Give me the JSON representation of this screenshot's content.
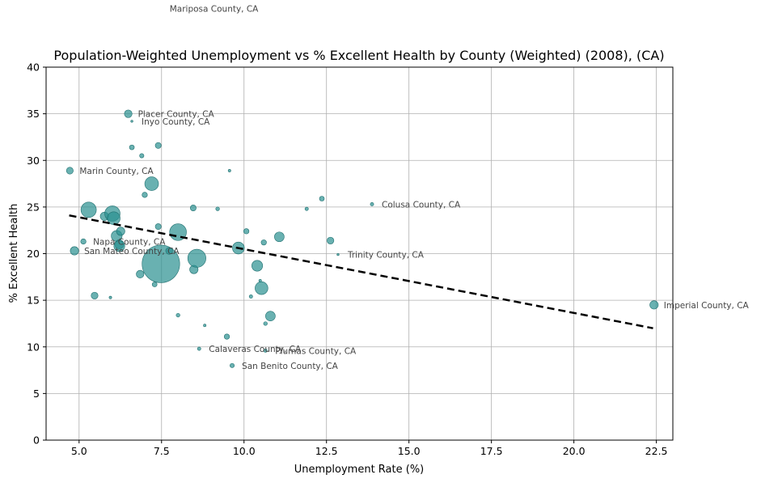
{
  "chart_data": {
    "type": "scatter",
    "title": "Population-Weighted Unemployment vs % Excellent Health by County (Weighted) (2008), (CA)",
    "xlabel": "Unemployment Rate (%)",
    "ylabel": "% Excellent Health",
    "xlim": [
      4.0,
      23.0
    ],
    "ylim": [
      0,
      40
    ],
    "xticks": [
      "5.0",
      "7.5",
      "10.0",
      "12.5",
      "15.0",
      "17.5",
      "20.0",
      "22.5"
    ],
    "xtick_values": [
      5.0,
      7.5,
      10.0,
      12.5,
      15.0,
      17.5,
      20.0,
      22.5
    ],
    "yticks": [
      "0",
      "5",
      "10",
      "15",
      "20",
      "25",
      "30",
      "35",
      "40"
    ],
    "ytick_values": [
      0,
      5,
      10,
      15,
      20,
      25,
      30,
      35,
      40
    ],
    "grid": true,
    "point_color": "#2a9090",
    "trend_color": "#000000",
    "trendline": {
      "x": [
        4.7,
        22.4
      ],
      "y": [
        24.1,
        12.0
      ]
    },
    "points": [
      {
        "x": 4.72,
        "y": 28.9,
        "w": 2
      },
      {
        "x": 4.86,
        "y": 20.3,
        "w": 3
      },
      {
        "x": 5.13,
        "y": 21.3,
        "w": 1.2
      },
      {
        "x": 5.29,
        "y": 24.7,
        "w": 10
      },
      {
        "x": 5.47,
        "y": 15.5,
        "w": 2
      },
      {
        "x": 5.77,
        "y": 24.0,
        "w": 3
      },
      {
        "x": 5.95,
        "y": 15.3,
        "w": 0.3
      },
      {
        "x": 6.01,
        "y": 24.3,
        "w": 10
      },
      {
        "x": 6.05,
        "y": 23.8,
        "w": 7
      },
      {
        "x": 6.14,
        "y": 21.9,
        "w": 5
      },
      {
        "x": 6.22,
        "y": 21.0,
        "w": 3.5
      },
      {
        "x": 6.22,
        "y": 20.8,
        "w": 5
      },
      {
        "x": 6.26,
        "y": 22.4,
        "w": 3
      },
      {
        "x": 6.49,
        "y": 35.0,
        "w": 2.5
      },
      {
        "x": 6.6,
        "y": 34.2,
        "w": 0.2
      },
      {
        "x": 6.6,
        "y": 31.4,
        "w": 1
      },
      {
        "x": 6.85,
        "y": 17.8,
        "w": 2.5
      },
      {
        "x": 6.9,
        "y": 30.5,
        "w": 0.8
      },
      {
        "x": 6.99,
        "y": 26.3,
        "w": 1.2
      },
      {
        "x": 7.2,
        "y": 27.5,
        "w": 8
      },
      {
        "x": 7.29,
        "y": 16.7,
        "w": 1
      },
      {
        "x": 7.4,
        "y": 31.6,
        "w": 1.5
      },
      {
        "x": 7.4,
        "y": 22.9,
        "w": 1.5
      },
      {
        "x": 7.48,
        "y": 18.9,
        "w": 60
      },
      {
        "x": 7.73,
        "y": 20.3,
        "w": 2
      },
      {
        "x": 8.0,
        "y": 13.4,
        "w": 0.6
      },
      {
        "x": 8.0,
        "y": 22.3,
        "w": 12
      },
      {
        "x": 8.46,
        "y": 24.9,
        "w": 1.5
      },
      {
        "x": 8.48,
        "y": 18.3,
        "w": 3
      },
      {
        "x": 8.57,
        "y": 19.5,
        "w": 14
      },
      {
        "x": 8.64,
        "y": 9.8,
        "w": 0.5
      },
      {
        "x": 8.81,
        "y": 12.3,
        "w": 0.3
      },
      {
        "x": 9.2,
        "y": 24.8,
        "w": 0.6
      },
      {
        "x": 9.48,
        "y": 11.1,
        "w": 1.2
      },
      {
        "x": 9.56,
        "y": 28.9,
        "w": 0.3
      },
      {
        "x": 9.64,
        "y": 8.0,
        "w": 0.8
      },
      {
        "x": 9.83,
        "y": 20.6,
        "w": 6
      },
      {
        "x": 10.07,
        "y": 22.4,
        "w": 1.2
      },
      {
        "x": 10.21,
        "y": 15.4,
        "w": 0.5
      },
      {
        "x": 10.4,
        "y": 18.7,
        "w": 5
      },
      {
        "x": 10.49,
        "y": 17.1,
        "w": 0.3
      },
      {
        "x": 10.53,
        "y": 16.3,
        "w": 7
      },
      {
        "x": 10.6,
        "y": 21.2,
        "w": 1.2
      },
      {
        "x": 10.65,
        "y": 12.5,
        "w": 0.6
      },
      {
        "x": 10.65,
        "y": 9.6,
        "w": 0.5
      },
      {
        "x": 10.8,
        "y": 13.3,
        "w": 4
      },
      {
        "x": 11.07,
        "y": 21.8,
        "w": 4
      },
      {
        "x": 11.9,
        "y": 24.8,
        "w": 0.5
      },
      {
        "x": 12.36,
        "y": 25.9,
        "w": 1
      },
      {
        "x": 12.62,
        "y": 21.4,
        "w": 2
      },
      {
        "x": 12.85,
        "y": 19.9,
        "w": 0.2
      },
      {
        "x": 13.88,
        "y": 25.3,
        "w": 0.5
      },
      {
        "x": 22.43,
        "y": 14.5,
        "w": 3
      }
    ],
    "annotations": [
      {
        "x": 4.72,
        "y": 28.9,
        "text": "Marin County, CA"
      },
      {
        "x": 5.13,
        "y": 21.3,
        "text": "Napa County, CA"
      },
      {
        "x": 4.86,
        "y": 20.3,
        "text": "San Mateo County, CA"
      },
      {
        "x": 6.49,
        "y": 35.0,
        "text": "Placer County, CA"
      },
      {
        "x": 6.6,
        "y": 34.2,
        "text": "Inyo County, CA"
      },
      {
        "x": 8.64,
        "y": 9.8,
        "text": "Calaveras County, CA"
      },
      {
        "x": 9.64,
        "y": 8.0,
        "text": "San Benito County, CA"
      },
      {
        "x": 10.65,
        "y": 9.6,
        "text": "Plumas County, CA"
      },
      {
        "x": 12.85,
        "y": 19.9,
        "text": "Trinity County, CA"
      },
      {
        "x": 13.88,
        "y": 25.3,
        "text": "Colusa County, CA"
      },
      {
        "x": 22.43,
        "y": 14.5,
        "text": "Imperial County, CA"
      },
      {
        "x": 7.45,
        "y": 46.3,
        "text": "Mariposa County, CA"
      }
    ]
  }
}
